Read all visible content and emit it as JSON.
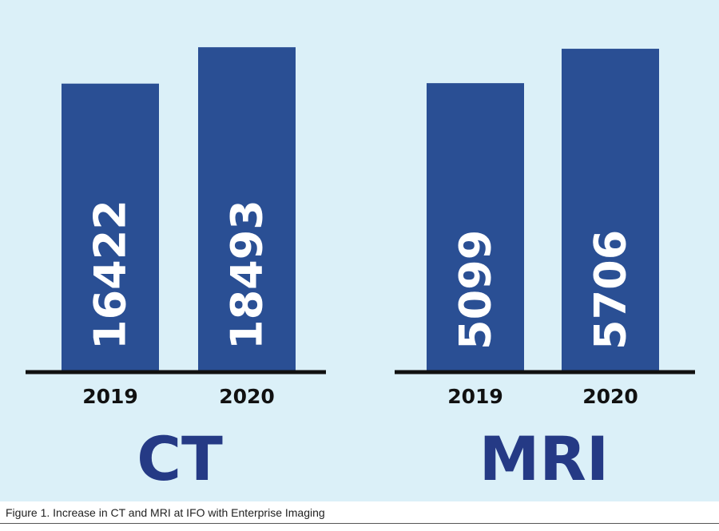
{
  "caption": "Figure 1. Increase in CT and MRI at IFO with Enterprise Imaging",
  "colors": {
    "background": "#dbf0f8",
    "bar": "#2a4f94",
    "bar_value_text": "#ffffff",
    "axis": "#111111",
    "tick_text": "#111111",
    "group_title": "#253a85"
  },
  "chart_data": [
    {
      "type": "bar",
      "title": "CT",
      "categories": [
        "2019",
        "2020"
      ],
      "values": [
        16422,
        18493
      ],
      "data_labels": [
        "16422",
        "18493"
      ],
      "xlabel": "",
      "ylabel": "",
      "ylim": [
        0,
        20000
      ],
      "grid": false,
      "legend": "none"
    },
    {
      "type": "bar",
      "title": "MRI",
      "categories": [
        "2019",
        "2020"
      ],
      "values": [
        5099,
        5706
      ],
      "data_labels": [
        "5099",
        "5706"
      ],
      "xlabel": "",
      "ylabel": "",
      "ylim": [
        0,
        6200
      ],
      "grid": false,
      "legend": "none"
    }
  ]
}
